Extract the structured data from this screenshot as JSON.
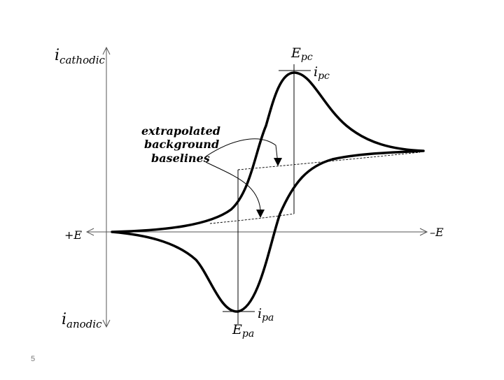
{
  "slide_number": "5",
  "axes": {
    "y_top_i": "i",
    "y_top_sub": "cathodic",
    "y_bottom_i": "i",
    "y_bottom_sub": "anodic",
    "x_left": "+E",
    "x_right": "–E"
  },
  "labels": {
    "epc_main": "E",
    "epc_sub": "pc",
    "ipc_main": "i",
    "ipc_sub": "pc",
    "epa_main": "E",
    "epa_sub": "pa",
    "ipa_main": "i",
    "ipa_sub": "pa"
  },
  "annotation": {
    "line1": "extrapolated",
    "line2": "background",
    "line3": "baselines"
  },
  "colors": {
    "curve": "#000000",
    "axis": "#555555",
    "text": "#000000"
  }
}
